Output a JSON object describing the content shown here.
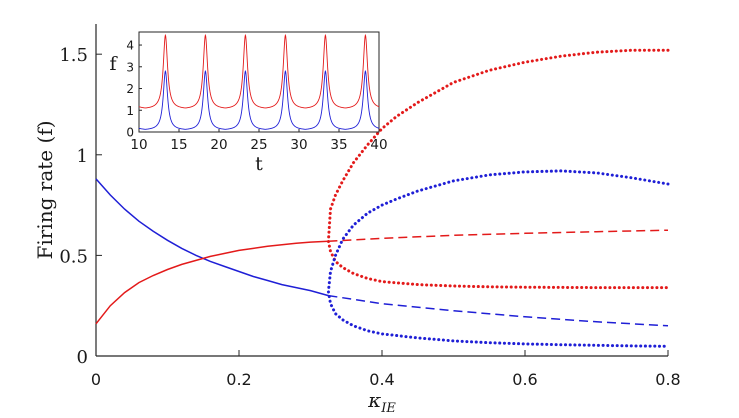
{
  "chart_data": [
    {
      "id": "main",
      "type": "line",
      "title": "",
      "xlabel_base": "κ",
      "xlabel_sub": "IE",
      "ylabel": "Firing rate (f)",
      "xlim": [
        0,
        0.8
      ],
      "ylim": [
        0,
        1.65
      ],
      "xticks": [
        0,
        0.2,
        0.4,
        0.6,
        0.8
      ],
      "xtick_labels": [
        "0",
        "0.2",
        "0.4",
        "0.6",
        "0.8"
      ],
      "yticks": [
        0,
        0.5,
        1,
        1.5
      ],
      "ytick_labels": [
        "0",
        "0.5",
        "1",
        "1.5"
      ],
      "grid": false,
      "legend": "none",
      "series": [
        {
          "color": "#1f1fd6",
          "style": "solid",
          "x": [
            0,
            0.02,
            0.04,
            0.06,
            0.08,
            0.1,
            0.12,
            0.14,
            0.16,
            0.18,
            0.2,
            0.22,
            0.24,
            0.26,
            0.28,
            0.3,
            0.325
          ],
          "y": [
            0.88,
            0.8,
            0.73,
            0.67,
            0.62,
            0.575,
            0.535,
            0.5,
            0.47,
            0.445,
            0.42,
            0.395,
            0.375,
            0.355,
            0.34,
            0.325,
            0.3
          ]
        },
        {
          "color": "#e31a1a",
          "style": "solid",
          "x": [
            0,
            0.02,
            0.04,
            0.06,
            0.08,
            0.1,
            0.12,
            0.14,
            0.16,
            0.18,
            0.2,
            0.22,
            0.24,
            0.26,
            0.28,
            0.3,
            0.325
          ],
          "y": [
            0.16,
            0.25,
            0.315,
            0.365,
            0.4,
            0.43,
            0.455,
            0.475,
            0.495,
            0.51,
            0.525,
            0.535,
            0.545,
            0.553,
            0.56,
            0.566,
            0.57
          ]
        },
        {
          "color": "#1f1fd6",
          "style": "dashed",
          "x": [
            0.325,
            0.4,
            0.5,
            0.6,
            0.7,
            0.8
          ],
          "y": [
            0.3,
            0.26,
            0.225,
            0.195,
            0.17,
            0.15
          ]
        },
        {
          "color": "#e31a1a",
          "style": "dashed",
          "x": [
            0.325,
            0.4,
            0.5,
            0.6,
            0.7,
            0.8
          ],
          "y": [
            0.57,
            0.585,
            0.6,
            0.61,
            0.618,
            0.625
          ]
        },
        {
          "color": "#e31a1a",
          "style": "dotted",
          "x": [
            0.8,
            0.75,
            0.7,
            0.65,
            0.6,
            0.55,
            0.5,
            0.45,
            0.42,
            0.4,
            0.38,
            0.36,
            0.345,
            0.335,
            0.328,
            0.325,
            0.328,
            0.335,
            0.345,
            0.36,
            0.38,
            0.4,
            0.45,
            0.5,
            0.55,
            0.6,
            0.65,
            0.7,
            0.75,
            0.8
          ],
          "y": [
            1.52,
            1.52,
            1.51,
            1.49,
            1.46,
            1.42,
            1.36,
            1.26,
            1.19,
            1.13,
            1.05,
            0.96,
            0.87,
            0.8,
            0.73,
            0.57,
            0.52,
            0.47,
            0.44,
            0.41,
            0.385,
            0.37,
            0.355,
            0.348,
            0.344,
            0.342,
            0.341,
            0.34,
            0.34,
            0.34
          ]
        },
        {
          "color": "#1f1fd6",
          "style": "dotted",
          "x": [
            0.8,
            0.75,
            0.7,
            0.65,
            0.6,
            0.55,
            0.5,
            0.45,
            0.42,
            0.4,
            0.38,
            0.36,
            0.345,
            0.335,
            0.328,
            0.325,
            0.328,
            0.335,
            0.345,
            0.36,
            0.38,
            0.4,
            0.45,
            0.5,
            0.55,
            0.6,
            0.65,
            0.7,
            0.75,
            0.8
          ],
          "y": [
            0.855,
            0.885,
            0.91,
            0.92,
            0.915,
            0.9,
            0.87,
            0.82,
            0.78,
            0.75,
            0.71,
            0.65,
            0.58,
            0.5,
            0.42,
            0.32,
            0.26,
            0.21,
            0.18,
            0.15,
            0.125,
            0.11,
            0.09,
            0.075,
            0.066,
            0.06,
            0.056,
            0.053,
            0.05,
            0.048
          ]
        }
      ]
    },
    {
      "id": "inset",
      "type": "line",
      "title": "",
      "xlabel": "t",
      "ylabel": "f",
      "xlim": [
        10,
        40
      ],
      "ylim": [
        0,
        4.6
      ],
      "xticks": [
        10,
        15,
        20,
        25,
        30,
        35,
        40
      ],
      "xtick_labels": [
        "10",
        "15",
        "20",
        "25",
        "30",
        "35",
        "40"
      ],
      "yticks": [
        0,
        1,
        2,
        3,
        4
      ],
      "ytick_labels": [
        "0",
        "1",
        "2",
        "3",
        "4"
      ],
      "grid": false,
      "legend": "none",
      "period": 5,
      "first_peak": 13.3,
      "series": [
        {
          "color": "#e31a1a",
          "baseline": 1.05,
          "peak": 4.45
        },
        {
          "color": "#1f1fd6",
          "baseline": 0.08,
          "peak": 2.8
        }
      ]
    }
  ]
}
